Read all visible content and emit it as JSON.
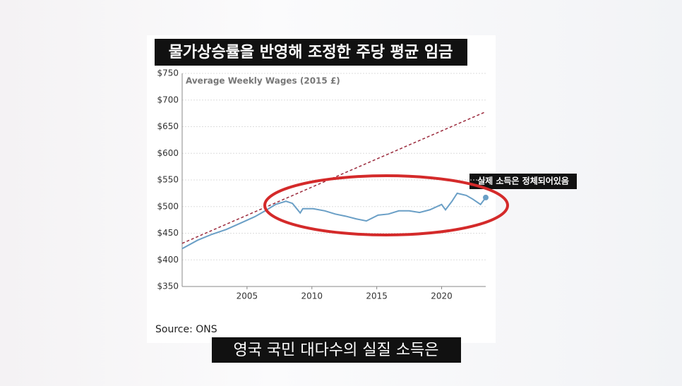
{
  "title": "물가상승률을 반영해 조정한 주당 평균 임금",
  "caption": "영국 국민 대다수의 실질 소득은",
  "chart_data": {
    "type": "line",
    "subtitle": "Average Weekly Wages (2015 £)",
    "source": "Source: ONS",
    "annotation": "실제 소득은 정체되어있음",
    "xlim": [
      2000,
      2023.4
    ],
    "xticks": [
      2005,
      2010,
      2015,
      2020
    ],
    "ylim": [
      350,
      750
    ],
    "yticks": [
      {
        "value": 350,
        "label": "$350"
      },
      {
        "value": 400,
        "label": "$400"
      },
      {
        "value": 450,
        "label": "$450"
      },
      {
        "value": 500,
        "label": "$500"
      },
      {
        "value": 550,
        "label": "$550"
      },
      {
        "value": 600,
        "label": "$600"
      },
      {
        "value": 650,
        "label": "$650"
      },
      {
        "value": 700,
        "label": "$700"
      },
      {
        "value": 750,
        "label": "$750"
      }
    ],
    "grid": true,
    "series": [
      {
        "color": "#6a9fc6",
        "style": "solid",
        "x": [
          2000.0,
          2001.2,
          2002.3,
          2003.4,
          2004.5,
          2005.6,
          2006.4,
          2007.2,
          2008.0,
          2008.5,
          2009.1,
          2009.3,
          2010.1,
          2011.0,
          2011.8,
          2012.6,
          2013.4,
          2014.2,
          2015.1,
          2015.9,
          2016.7,
          2017.5,
          2018.3,
          2019.1,
          2020.0,
          2020.3,
          2020.8,
          2021.2,
          2021.9,
          2022.4,
          2023.0,
          2023.4
        ],
        "values": [
          421,
          437,
          448,
          457,
          469,
          481,
          492,
          504,
          510,
          506,
          488,
          496,
          496,
          492,
          486,
          482,
          477,
          473,
          484,
          486,
          492,
          492,
          489,
          494,
          504,
          494,
          510,
          525,
          521,
          514,
          504,
          517
        ]
      },
      {
        "color": "#9b2a3c",
        "style": "dashed",
        "x": [
          2000,
          2023.4
        ],
        "values": [
          431,
          678
        ]
      }
    ]
  }
}
